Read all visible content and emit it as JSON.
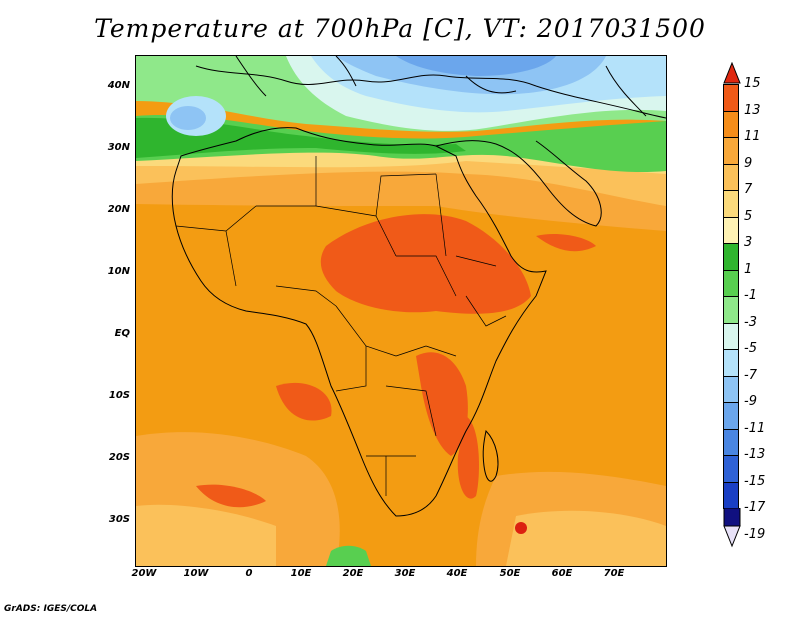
{
  "title": "Temperature at 700hPa [C], VT: 2017031500",
  "credit": "GrADS: IGES/COLA",
  "lat_labels": [
    "40N",
    "30N",
    "20N",
    "10N",
    "EQ",
    "10S",
    "20S",
    "30S"
  ],
  "lon_labels": [
    "20W",
    "10W",
    "0",
    "10E",
    "20E",
    "30E",
    "40E",
    "50E",
    "60E",
    "70E"
  ],
  "colorbar": {
    "labels": [
      "15",
      "13",
      "11",
      "9",
      "7",
      "5",
      "3",
      "1",
      "-1",
      "-3",
      "-5",
      "-7",
      "-9",
      "-11",
      "-13",
      "-15",
      "-17",
      "-19"
    ],
    "colors": [
      "#dc2010",
      "#f05a18",
      "#f58d1a",
      "#f8a83a",
      "#fbc15a",
      "#fbda7c",
      "#fef2b4",
      "#2fb52e",
      "#58cf50",
      "#8fe88a",
      "#d9f6ee",
      "#b4e2fa",
      "#8ec4f4",
      "#6ba6ec",
      "#4a86e2",
      "#2f62d6",
      "#1a3fc4",
      "#101080"
    ],
    "top_arrow": "#e02810",
    "bottom_arrow": "#e8e2f8"
  }
}
